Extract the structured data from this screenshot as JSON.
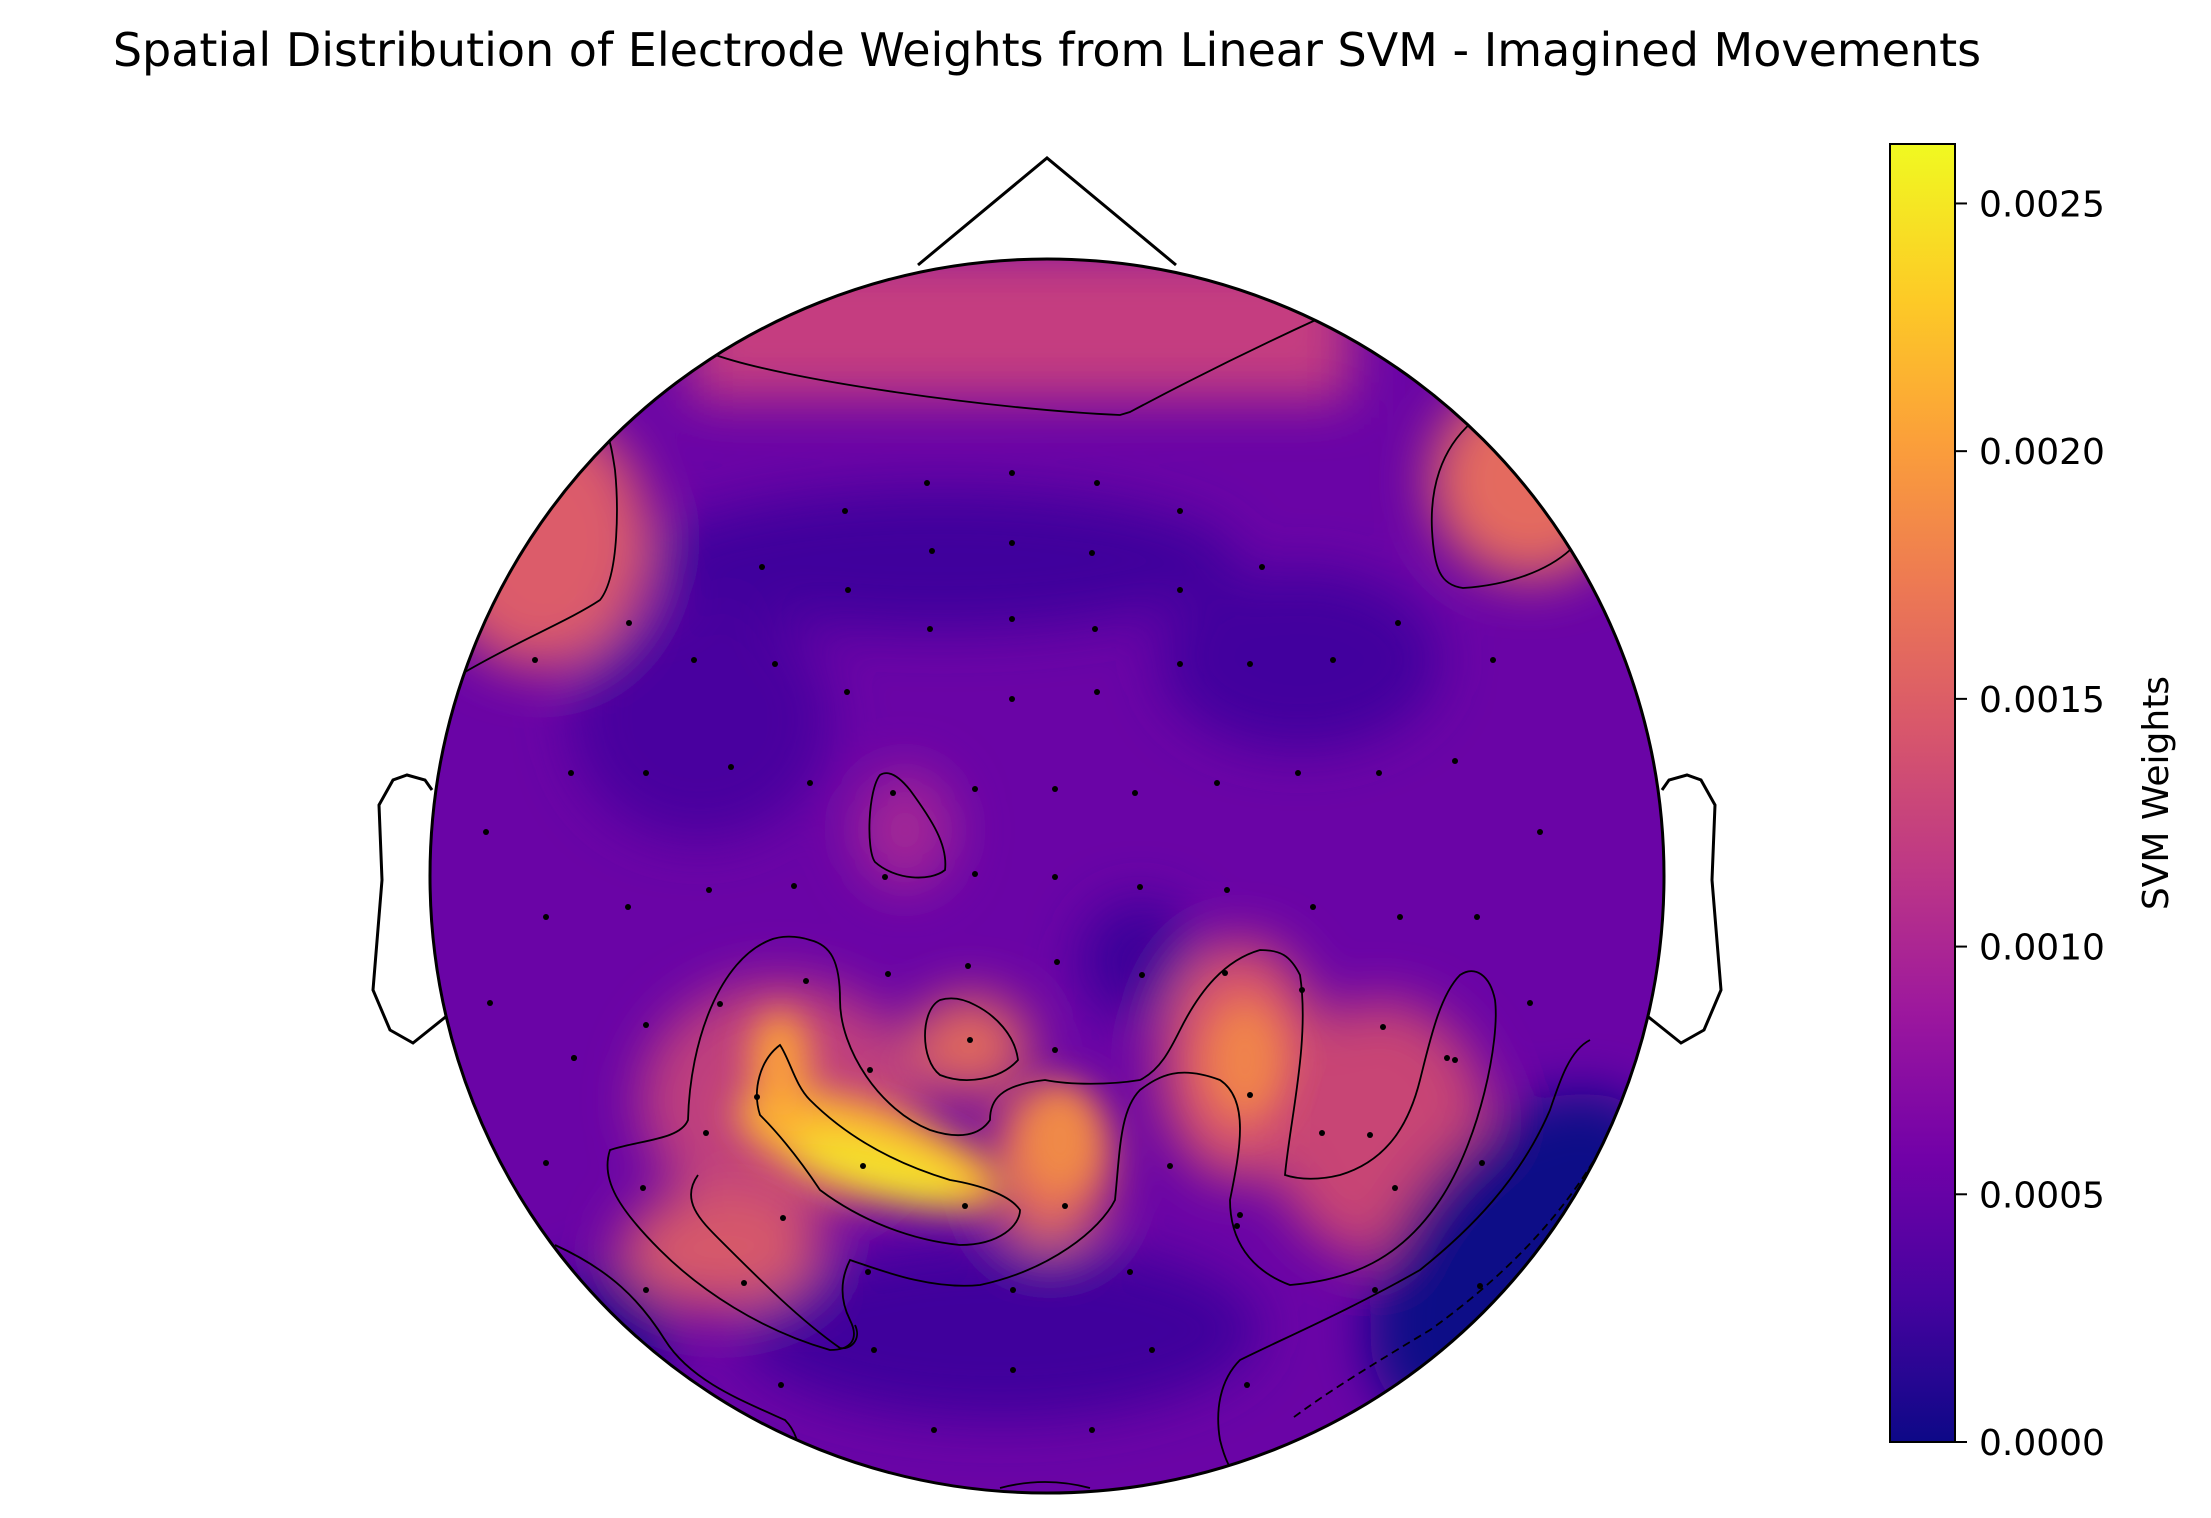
{
  "chart_data": {
    "type": "heatmap",
    "subtype": "topographic-scalp-map",
    "title": "Spatial Distribution of Electrode Weights from Linear SVM - Imagined Movements",
    "colorbar": {
      "label": "SVM Weights",
      "range": [
        0.0,
        0.00262
      ],
      "ticks": [
        0.0,
        0.0005,
        0.001,
        0.0015,
        0.002,
        0.0025
      ],
      "tick_labels": [
        "0.0000",
        "0.0005",
        "0.0010",
        "0.0015",
        "0.0020",
        "0.0025"
      ],
      "colormap": "plasma",
      "colors": [
        "#0d0887",
        "#46039f",
        "#7201a8",
        "#9c179e",
        "#bd3786",
        "#d8576b",
        "#ed7953",
        "#fb9f3a",
        "#fdca26",
        "#f0f921"
      ]
    },
    "electrodes": 64,
    "contour_levels": [
      0.0,
      0.00087,
      0.00175
    ]
  }
}
